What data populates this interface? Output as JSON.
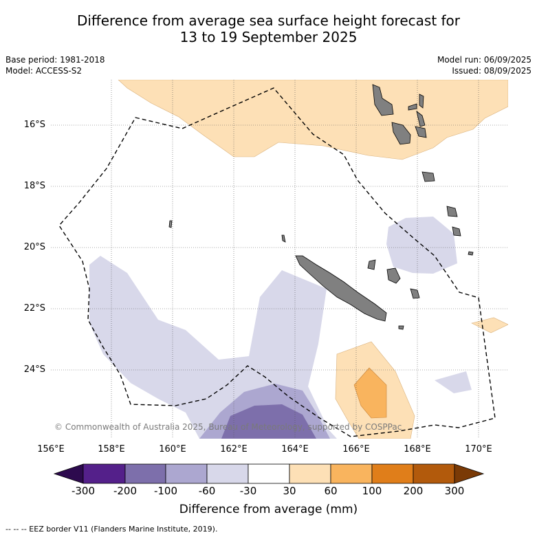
{
  "title_line1": "Difference from average sea surface height forecast for",
  "title_line2": "13 to 19 September 2025",
  "base_period": "Base period: 1981-2018",
  "model": "Model: ACCESS-S2",
  "model_run": "Model run: 06/09/2025",
  "issued": "Issued: 08/09/2025",
  "lat_labels": [
    "16°S",
    "18°S",
    "20°S",
    "22°S",
    "24°S"
  ],
  "lon_labels": [
    "156°E",
    "158°E",
    "160°E",
    "162°E",
    "164°E",
    "166°E",
    "168°E",
    "170°E"
  ],
  "copyright": "© Commonwealth of Australia 2025, Bureau of Meteorology, supported by COSPPac",
  "colorbar": {
    "title": "Difference from average (mm)",
    "ticks": [
      "-300",
      "-200",
      "-100",
      "-60",
      "-30",
      "30",
      "60",
      "100",
      "200",
      "300"
    ],
    "colors": [
      "#2d0a4e",
      "#54208a",
      "#7d6fab",
      "#aca7d0",
      "#d8d8ea",
      "#ffffff",
      "#fde0b6",
      "#f9b45e",
      "#e07e1a",
      "#b25a0c",
      "#7a3a06"
    ]
  },
  "colors": {
    "land": "#808080",
    "positive_light": "#fde0b6",
    "positive_mid": "#f9b45e",
    "negative_light": "#d8d8ea",
    "negative_mid": "#aca7d0",
    "negative_dark": "#7d6fab"
  },
  "footer": "--  --  -- EEZ border V11 (Flanders Marine Institute, 2019)."
}
